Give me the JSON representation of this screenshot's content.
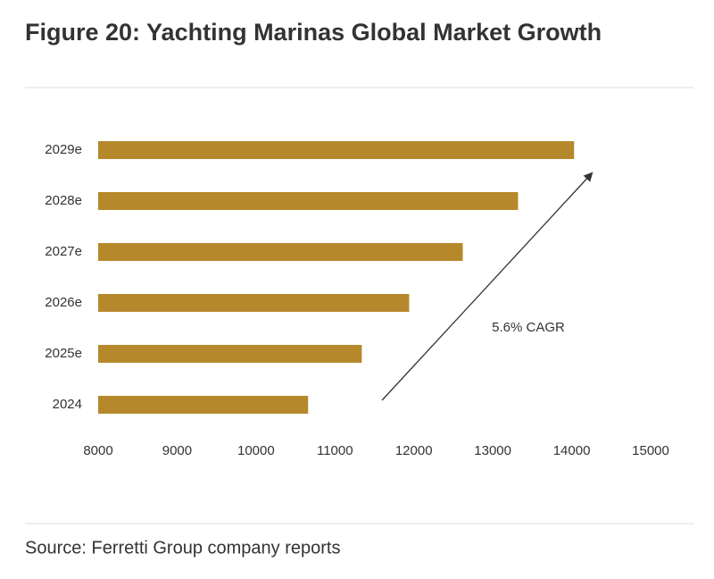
{
  "chart_data": {
    "type": "bar",
    "orientation": "horizontal",
    "title": "Figure 20: Yachting Marinas Global Market Growth",
    "categories": [
      "2024",
      "2025e",
      "2026e",
      "2027e",
      "2028e",
      "2029e"
    ],
    "values": [
      10660,
      11340,
      11940,
      12620,
      13320,
      14030
    ],
    "color": "#b5892b",
    "xlim": [
      8000,
      15000
    ],
    "xticks": [
      8000,
      9000,
      10000,
      11000,
      12000,
      13000,
      14000,
      15000
    ],
    "grid": false,
    "annotation": "5.6% CAGR",
    "source": "Source: Ferretti Group company reports"
  }
}
